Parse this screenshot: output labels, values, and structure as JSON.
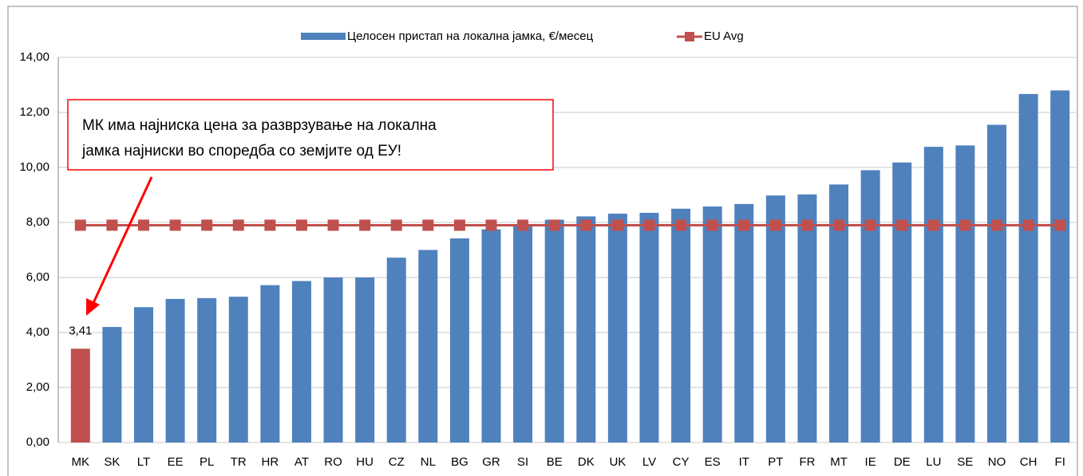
{
  "chart_data": {
    "type": "bar",
    "categories": [
      "MK",
      "SK",
      "LT",
      "EE",
      "PL",
      "TR",
      "HR",
      "AT",
      "RO",
      "HU",
      "CZ",
      "NL",
      "BG",
      "GR",
      "SI",
      "BE",
      "DK",
      "UK",
      "LV",
      "CY",
      "ES",
      "IT",
      "PT",
      "FR",
      "MT",
      "IE",
      "DE",
      "LU",
      "SE",
      "NO",
      "CH",
      "FI"
    ],
    "series": [
      {
        "name": "Целосен пристап на локална јамка,  €/месец",
        "type": "bar",
        "color": "#4f81bd",
        "colors": [
          "#c0504d",
          "#4f81bd",
          "#4f81bd",
          "#4f81bd",
          "#4f81bd",
          "#4f81bd",
          "#4f81bd",
          "#4f81bd",
          "#4f81bd",
          "#4f81bd",
          "#4f81bd",
          "#4f81bd",
          "#4f81bd",
          "#4f81bd",
          "#4f81bd",
          "#4f81bd",
          "#4f81bd",
          "#4f81bd",
          "#4f81bd",
          "#4f81bd",
          "#4f81bd",
          "#4f81bd",
          "#4f81bd",
          "#4f81bd",
          "#4f81bd",
          "#4f81bd",
          "#4f81bd",
          "#4f81bd",
          "#4f81bd",
          "#4f81bd",
          "#4f81bd",
          "#4f81bd"
        ],
        "values": [
          3.41,
          4.2,
          4.92,
          5.22,
          5.25,
          5.3,
          5.72,
          5.87,
          6.0,
          6.0,
          6.72,
          7.0,
          7.42,
          7.75,
          7.9,
          8.1,
          8.22,
          8.32,
          8.35,
          8.5,
          8.58,
          8.67,
          8.98,
          9.02,
          9.38,
          9.9,
          10.18,
          10.75,
          10.8,
          11.55,
          12.67,
          12.8
        ],
        "value_labels": [
          "3,41",
          null,
          null,
          null,
          null,
          null,
          null,
          null,
          null,
          null,
          null,
          null,
          null,
          null,
          null,
          null,
          null,
          null,
          null,
          null,
          null,
          null,
          null,
          null,
          null,
          null,
          null,
          null,
          null,
          null,
          null,
          null
        ]
      },
      {
        "name": "EU Avg",
        "type": "line",
        "color": "#c0504d",
        "values": [
          7.9,
          7.9,
          7.9,
          7.9,
          7.9,
          7.9,
          7.9,
          7.9,
          7.9,
          7.9,
          7.9,
          7.9,
          7.9,
          7.9,
          7.9,
          7.9,
          7.9,
          7.9,
          7.9,
          7.9,
          7.9,
          7.9,
          7.9,
          7.9,
          7.9,
          7.9,
          7.9,
          7.9,
          7.9,
          7.9,
          7.9,
          7.9
        ]
      }
    ],
    "ylim": [
      0,
      14
    ],
    "yticks": [
      {
        "value": 0,
        "label": "0,00"
      },
      {
        "value": 2,
        "label": "2,00"
      },
      {
        "value": 4,
        "label": "4,00"
      },
      {
        "value": 6,
        "label": "6,00"
      },
      {
        "value": 8,
        "label": "8,00"
      },
      {
        "value": 10,
        "label": "10,00"
      },
      {
        "value": 12,
        "label": "12,00"
      },
      {
        "value": 14,
        "label": "14,00"
      }
    ],
    "grid": true,
    "legend": "top",
    "annotation": {
      "lines": [
        "МК има најниска цена за разврзување на локална",
        "јамка најниски во споредба со земјите од ЕУ!"
      ],
      "color": "#ff0000"
    }
  }
}
